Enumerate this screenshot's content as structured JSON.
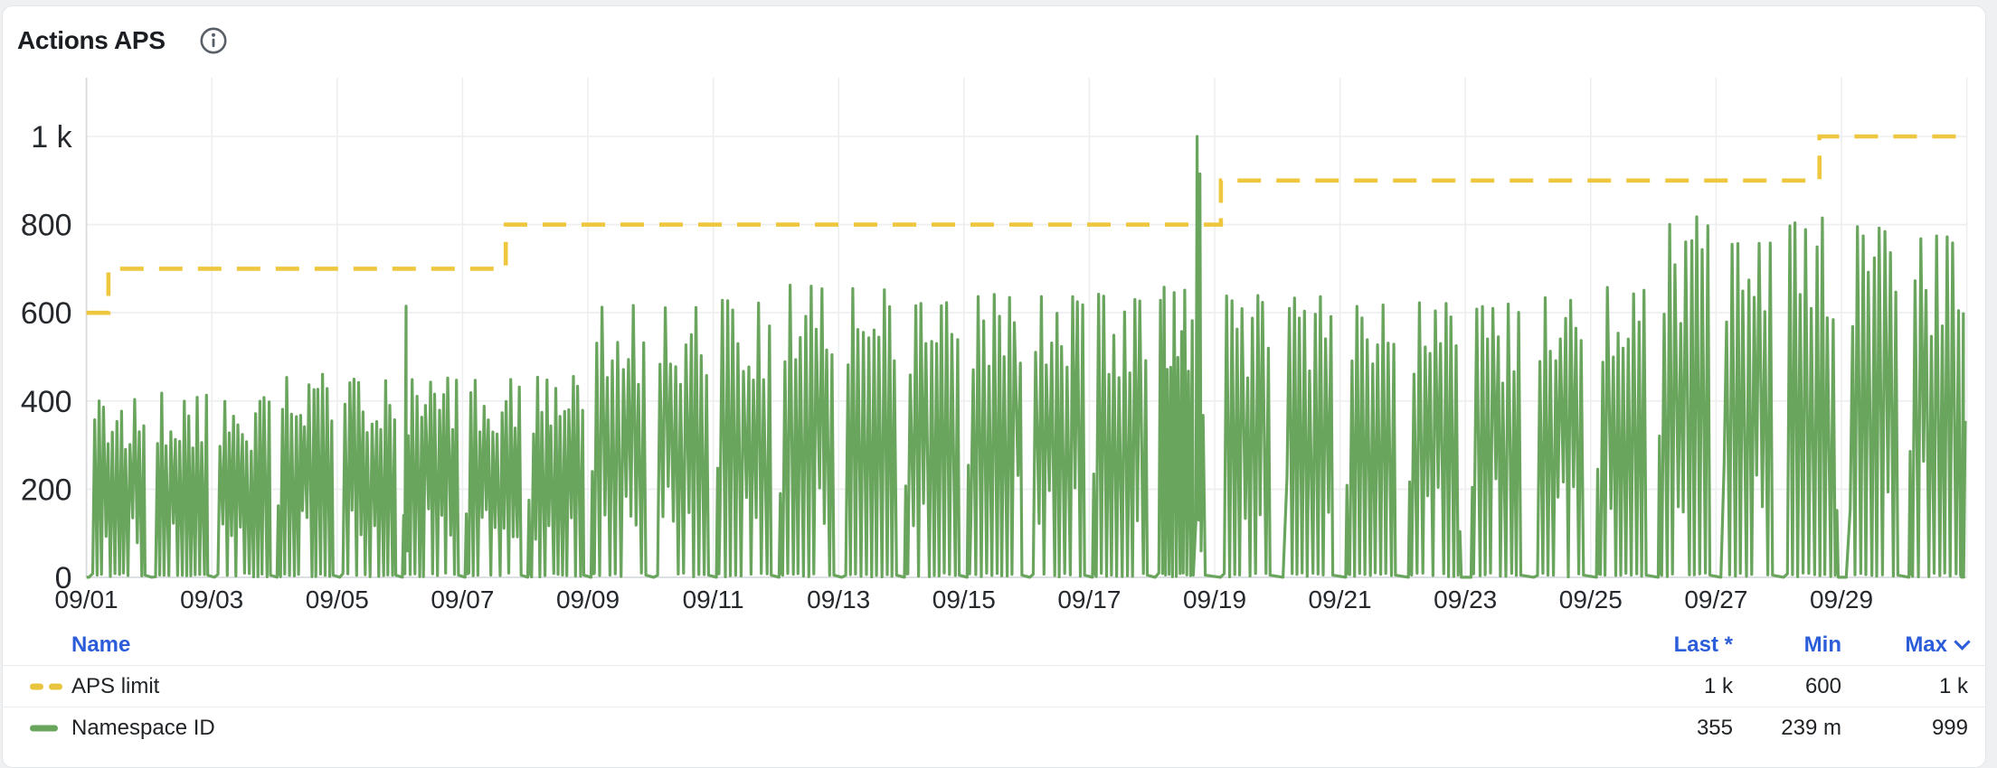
{
  "panel": {
    "title": "Actions APS",
    "info_icon": "info-circle"
  },
  "chart_data": {
    "type": "line",
    "title": "Actions APS",
    "x_axis": {
      "tick_labels": [
        "09/01",
        "09/03",
        "09/05",
        "09/07",
        "09/09",
        "09/11",
        "09/13",
        "09/15",
        "09/17",
        "09/19",
        "09/21",
        "09/23",
        "09/25",
        "09/27",
        "09/29"
      ],
      "tick_every_days": 2,
      "days_total": 30,
      "grid": true
    },
    "y_axis": {
      "tick_labels": [
        "0",
        "200",
        "400",
        "600",
        "800",
        "1 k"
      ],
      "tick_values": [
        0,
        200,
        400,
        600,
        800,
        1000
      ],
      "range": [
        0,
        1130
      ],
      "grid": true
    },
    "legend_position": "bottom-table",
    "series": [
      {
        "name": "APS limit",
        "color": "#eec73e",
        "line_style": "dashed",
        "render": "step",
        "steps": [
          {
            "day": 0,
            "value": 600
          },
          {
            "day": 0.35,
            "value": 700
          },
          {
            "day": 6.69,
            "value": 800
          },
          {
            "day": 18.1,
            "value": 900
          },
          {
            "day": 27.65,
            "value": 1000
          }
        ],
        "end_day": 30,
        "stats": {
          "last": "1 k",
          "min": "600",
          "max": "1 k"
        }
      },
      {
        "name": "Namespace ID",
        "color": "#6aa55e",
        "line_style": "solid",
        "render": "daily-spikes",
        "daily_peaks": [
          405,
          418,
          408,
          462,
          452,
          455,
          452,
          460,
          622,
          615,
          638,
          665,
          658,
          630,
          642,
          648,
          645,
          668,
          640,
          638,
          628,
          632,
          626,
          638,
          658,
          820,
          768,
          818,
          800,
          775
        ],
        "outlier_spikes": [
          {
            "day": 5.1,
            "value": 615
          },
          {
            "day": 17.72,
            "value": 1000
          },
          {
            "day": 17.765,
            "value": 915
          }
        ],
        "last_value": 355,
        "stats": {
          "last": "355",
          "min": "239 m",
          "max": "999"
        }
      }
    ]
  },
  "legend": {
    "name_header": "Name",
    "stat_headers": [
      {
        "label": "Last *"
      },
      {
        "label": "Min"
      },
      {
        "label": "Max",
        "sort": "desc"
      }
    ],
    "rows": [
      {
        "name": "APS limit",
        "swatch": "dashed-yellow",
        "last": "1 k",
        "min": "600",
        "max": "1 k"
      },
      {
        "name": "Namespace ID",
        "swatch": "solid-green",
        "last": "355",
        "min": "239 m",
        "max": "999"
      }
    ]
  },
  "colors": {
    "limit_line": "#eec73e",
    "namespace_line": "#6aa55e",
    "legend_header": "#2b5cd9",
    "axis_text": "#25282c",
    "grid": "#eceef0",
    "axis_line": "#d8dbde",
    "title_text": "#1b1e22"
  }
}
